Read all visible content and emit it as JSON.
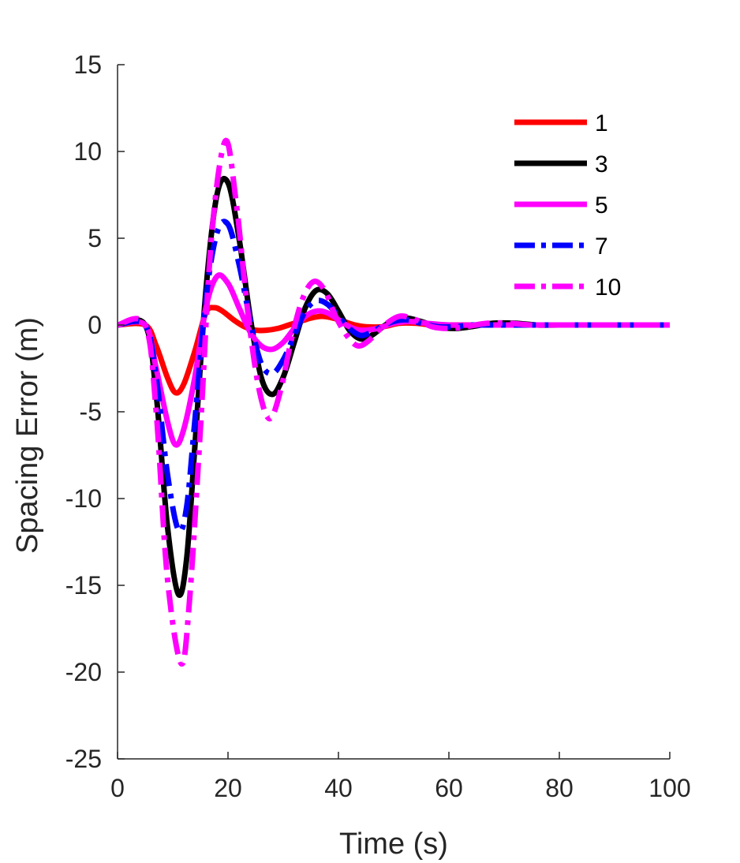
{
  "chart_data": {
    "type": "line",
    "title": "",
    "xlabel": "Time (s)",
    "ylabel": "Spacing Error (m)",
    "xlim": [
      0,
      100
    ],
    "ylim": [
      -25,
      15
    ],
    "xticks": [
      0,
      20,
      40,
      60,
      80,
      100
    ],
    "yticks": [
      -25,
      -20,
      -15,
      -10,
      -5,
      0,
      5,
      10,
      15
    ],
    "grid": false,
    "legend_position": "top-right",
    "series": [
      {
        "name": "1",
        "color": "#ff0000",
        "style": "solid",
        "x": [
          0,
          5,
          7,
          9,
          10.5,
          12,
          14,
          16,
          17.5,
          19,
          21,
          23,
          25,
          27,
          29,
          31,
          33,
          35,
          37,
          39,
          41,
          43,
          45,
          48,
          51,
          54,
          57,
          60,
          65,
          70,
          75,
          80,
          90,
          100
        ],
        "y": [
          0,
          0,
          -1.2,
          -3.0,
          -3.9,
          -3.4,
          -1.5,
          0.7,
          1.0,
          0.8,
          0.3,
          -0.1,
          -0.3,
          -0.3,
          -0.2,
          0.0,
          0.2,
          0.4,
          0.5,
          0.4,
          0.2,
          0.0,
          -0.1,
          -0.1,
          0.1,
          0.1,
          0.0,
          0.0,
          0.0,
          0.0,
          0.0,
          0.0,
          0.0,
          0.0
        ]
      },
      {
        "name": "3",
        "color": "#000000",
        "style": "solid",
        "x": [
          0,
          5,
          7,
          9,
          11,
          12.5,
          14,
          16,
          18,
          20,
          22,
          24,
          26,
          28,
          30,
          32,
          34,
          36,
          38,
          40,
          42,
          44,
          46,
          49,
          52,
          55,
          58,
          61,
          64,
          68,
          72,
          76,
          80,
          85,
          90,
          100
        ],
        "y": [
          0,
          0,
          -4.0,
          -11.5,
          -15.5,
          -13.5,
          -7.0,
          2.0,
          7.5,
          8.2,
          5.0,
          0.5,
          -3.0,
          -4.0,
          -3.0,
          -1.0,
          1.0,
          2.0,
          1.8,
          0.8,
          -0.3,
          -0.8,
          -0.6,
          0.1,
          0.4,
          0.2,
          -0.1,
          -0.2,
          -0.1,
          0.1,
          0.1,
          0.0,
          0.0,
          0.0,
          0.0,
          0.0
        ]
      },
      {
        "name": "5",
        "color": "#ff00ff",
        "style": "solid",
        "x": [
          0,
          5,
          7,
          9,
          10.5,
          12,
          14,
          16,
          18,
          20,
          22,
          24,
          26,
          28,
          30,
          32,
          34,
          36,
          38,
          40,
          42,
          44,
          47,
          50,
          53,
          56,
          60,
          65,
          70,
          80,
          90,
          100
        ],
        "y": [
          0,
          0,
          -2.5,
          -5.5,
          -6.9,
          -6.0,
          -3.0,
          1.0,
          2.8,
          2.4,
          1.0,
          -0.4,
          -1.2,
          -1.4,
          -1.0,
          -0.2,
          0.5,
          0.8,
          0.7,
          0.3,
          -0.1,
          -0.3,
          -0.2,
          0.1,
          0.2,
          0.1,
          0.0,
          0.0,
          0.0,
          0.0,
          0.0,
          0.0
        ]
      },
      {
        "name": "7",
        "color": "#0000ff",
        "style": "dashdot",
        "x": [
          0,
          5,
          7,
          9,
          11,
          12.5,
          14,
          16,
          18,
          20,
          22,
          24,
          26,
          28,
          30,
          32,
          34,
          36,
          38,
          40,
          42,
          44,
          46,
          49,
          52,
          55,
          58,
          61,
          64,
          68,
          72,
          80,
          90,
          100
        ],
        "y": [
          0,
          0,
          -3.0,
          -8.5,
          -11.8,
          -10.5,
          -5.5,
          1.5,
          5.3,
          5.8,
          3.5,
          0.3,
          -2.2,
          -2.8,
          -2.0,
          -0.6,
          0.8,
          1.4,
          1.2,
          0.5,
          -0.2,
          -0.6,
          -0.4,
          0.1,
          0.3,
          0.1,
          -0.1,
          -0.1,
          0.0,
          0.0,
          0.0,
          0.0,
          0.0,
          0.0
        ]
      },
      {
        "name": "10",
        "color": "#ff00ff",
        "style": "dashdot",
        "x": [
          0,
          5,
          7,
          9,
          11.5,
          13,
          15,
          17,
          19.5,
          21.5,
          23.5,
          25.5,
          27.5,
          29.5,
          31.5,
          33.5,
          35.5,
          37.5,
          39.5,
          41.5,
          43.5,
          45.5,
          48,
          51,
          54,
          57,
          60,
          63,
          67,
          71,
          75,
          80,
          90,
          100
        ],
        "y": [
          0,
          0,
          -5.0,
          -14.5,
          -19.5,
          -16.0,
          -6.0,
          5.0,
          10.6,
          7.0,
          1.0,
          -3.5,
          -5.4,
          -3.8,
          -0.8,
          1.5,
          2.5,
          2.0,
          0.5,
          -0.6,
          -1.2,
          -0.9,
          -0.1,
          0.5,
          0.3,
          -0.1,
          -0.2,
          -0.1,
          0.1,
          0.1,
          0.0,
          0.0,
          0.0,
          0.0
        ]
      }
    ]
  }
}
